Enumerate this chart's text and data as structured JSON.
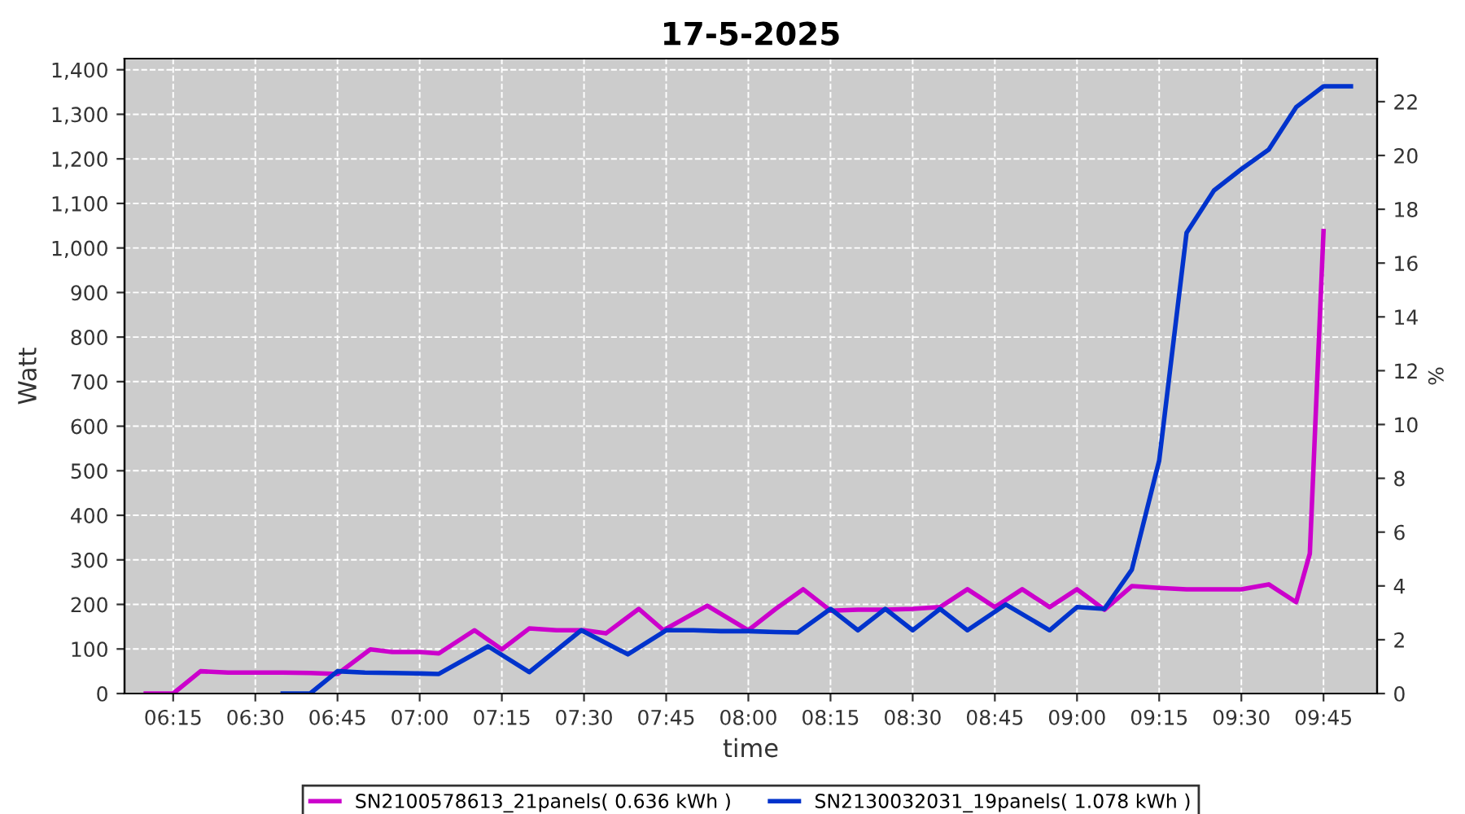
{
  "chart_data": {
    "type": "line",
    "title": "17-5-2025",
    "xlabel": "time",
    "ylabel": "Watt",
    "y2label": "%",
    "series": [
      {
        "name": "SN2100578613_21panels( 0.636 kWh )",
        "color": "#cc00cc",
        "x": [
          6.1667,
          6.25,
          6.3333,
          6.4167,
          6.5,
          6.5833,
          6.6667,
          6.75,
          6.85,
          6.9167,
          7.0,
          7.0583,
          7.1667,
          7.25,
          7.3333,
          7.4167,
          7.5,
          7.5667,
          7.6667,
          7.7417,
          7.875,
          8.0,
          8.0833,
          8.1667,
          8.25,
          8.3333,
          8.4167,
          8.5,
          8.5833,
          8.6667,
          8.75,
          8.8333,
          8.9167,
          9.0,
          9.0833,
          9.1667,
          9.25,
          9.3333,
          9.4167,
          9.5,
          9.5833,
          9.6667,
          9.7083,
          9.75
        ],
        "values": [
          0,
          0,
          50,
          47,
          47,
          47,
          46,
          44,
          99,
          93,
          93,
          90,
          142,
          99,
          146,
          142,
          142,
          135,
          190,
          142,
          197,
          142,
          190,
          234,
          186,
          188,
          188,
          190,
          194,
          234,
          194,
          234,
          194,
          234,
          188,
          241,
          237,
          234,
          234,
          234,
          245,
          205,
          314,
          1038
        ]
      },
      {
        "name": "SN2130032031_19panels( 1.078 kWh )",
        "color": "#0033cc",
        "x": [
          6.5833,
          6.6667,
          6.75,
          6.8333,
          6.9167,
          7.0,
          7.0583,
          7.2083,
          7.3333,
          7.4917,
          7.6333,
          7.75,
          7.8333,
          7.9167,
          8.0,
          8.0833,
          8.15,
          8.25,
          8.3333,
          8.4167,
          8.5,
          8.5833,
          8.6667,
          8.7833,
          8.9167,
          9.0,
          9.0833,
          9.1667,
          9.25,
          9.3333,
          9.4167,
          9.5,
          9.5833,
          9.6667,
          9.75,
          9.8333
        ],
        "values": [
          0,
          0,
          50,
          47,
          46,
          45,
          44,
          106,
          48,
          142,
          88,
          142,
          142,
          140,
          140,
          138,
          137,
          190,
          142,
          190,
          142,
          190,
          142,
          200,
          142,
          194,
          190,
          278,
          523,
          1034,
          1129,
          1177,
          1221,
          1316,
          1363,
          1363
        ]
      }
    ],
    "xlim": [
      6.102,
      9.913
    ],
    "xticks": [
      {
        "value": 6.25,
        "label": "06:15"
      },
      {
        "value": 6.5,
        "label": "06:30"
      },
      {
        "value": 6.75,
        "label": "06:45"
      },
      {
        "value": 7.0,
        "label": "07:00"
      },
      {
        "value": 7.25,
        "label": "07:15"
      },
      {
        "value": 7.5,
        "label": "07:30"
      },
      {
        "value": 7.75,
        "label": "07:45"
      },
      {
        "value": 8.0,
        "label": "08:00"
      },
      {
        "value": 8.25,
        "label": "08:15"
      },
      {
        "value": 8.5,
        "label": "08:30"
      },
      {
        "value": 8.75,
        "label": "08:45"
      },
      {
        "value": 9.0,
        "label": "09:00"
      },
      {
        "value": 9.25,
        "label": "09:15"
      },
      {
        "value": 9.5,
        "label": "09:30"
      },
      {
        "value": 9.75,
        "label": "09:45"
      }
    ],
    "ylim": [
      0,
      1425
    ],
    "yticks": [
      0,
      {
        "value": 100,
        "label": "100"
      },
      {
        "value": 200,
        "label": "200"
      },
      {
        "value": 300,
        "label": "300"
      },
      {
        "value": 400,
        "label": "400"
      },
      {
        "value": 500,
        "label": "500"
      },
      {
        "value": 600,
        "label": "600"
      },
      {
        "value": 700,
        "label": "700"
      },
      {
        "value": 800,
        "label": "800"
      },
      {
        "value": 900,
        "label": "900"
      },
      {
        "value": 1000,
        "label": "1,000"
      },
      {
        "value": 1100,
        "label": "1,100"
      },
      {
        "value": 1200,
        "label": "1,200"
      },
      {
        "value": 1300,
        "label": "1,300"
      },
      {
        "value": 1400,
        "label": "1,400"
      }
    ],
    "y2lim": [
      0,
      23.6
    ],
    "y2ticks": [
      0,
      2,
      4,
      6,
      8,
      10,
      12,
      14,
      16,
      18,
      20,
      22
    ],
    "grid": true,
    "legend": "bottom",
    "line_style": "solid",
    "marker": "none"
  }
}
